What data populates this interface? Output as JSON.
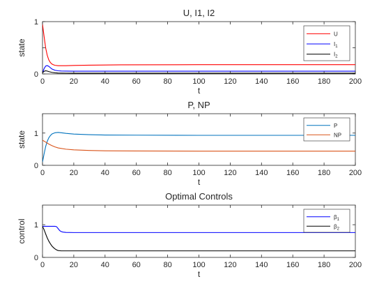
{
  "chart_data": [
    {
      "type": "line",
      "title": "U, I1, I2",
      "xlabel": "t",
      "ylabel": "state",
      "xlim": [
        0,
        200
      ],
      "ylim": [
        0,
        1
      ],
      "xticks": [
        "0",
        "20",
        "40",
        "60",
        "80",
        "100",
        "120",
        "140",
        "160",
        "180",
        "200"
      ],
      "yticks": [
        "0",
        "0.5",
        "1"
      ],
      "legend_position": "top-right",
      "series": [
        {
          "name": "U",
          "legend_base": "U",
          "legend_sub": "",
          "color": "#ff0000",
          "x": [
            0,
            1,
            2,
            3,
            4,
            5,
            6,
            7,
            8,
            10,
            12,
            15,
            20,
            30,
            50,
            100,
            150,
            200
          ],
          "y": [
            0.95,
            0.72,
            0.5,
            0.36,
            0.27,
            0.22,
            0.19,
            0.175,
            0.165,
            0.158,
            0.157,
            0.158,
            0.162,
            0.168,
            0.174,
            0.177,
            0.178,
            0.178
          ]
        },
        {
          "name": "I1",
          "legend_base": "I",
          "legend_sub": "1",
          "color": "#0000ff",
          "x": [
            0,
            1,
            2,
            3,
            4,
            5,
            6,
            8,
            10,
            12,
            15,
            20,
            30,
            50,
            100,
            200
          ],
          "y": [
            0.02,
            0.1,
            0.15,
            0.16,
            0.145,
            0.12,
            0.095,
            0.07,
            0.06,
            0.056,
            0.054,
            0.053,
            0.053,
            0.053,
            0.053,
            0.053
          ]
        },
        {
          "name": "I2",
          "legend_base": "I",
          "legend_sub": "2",
          "color": "#000000",
          "x": [
            0,
            1,
            2,
            3,
            4,
            6,
            8,
            10,
            15,
            20,
            50,
            100,
            200
          ],
          "y": [
            0.02,
            0.05,
            0.06,
            0.055,
            0.045,
            0.03,
            0.022,
            0.018,
            0.015,
            0.014,
            0.014,
            0.014,
            0.014
          ]
        }
      ]
    },
    {
      "type": "line",
      "title": "P, NP",
      "xlabel": "t",
      "ylabel": "state",
      "xlim": [
        0,
        200
      ],
      "ylim": [
        0,
        1.6
      ],
      "xticks": [
        "0",
        "20",
        "40",
        "60",
        "80",
        "100",
        "120",
        "140",
        "160",
        "180",
        "200"
      ],
      "yticks": [
        "0",
        "1"
      ],
      "legend_position": "top-right",
      "series": [
        {
          "name": "P",
          "legend_base": "P",
          "legend_sub": "",
          "color": "#0072bd",
          "x": [
            0,
            1,
            2,
            3,
            4,
            5,
            6,
            8,
            10,
            12,
            15,
            20,
            30,
            40,
            60,
            100,
            150,
            200
          ],
          "y": [
            0.1,
            0.35,
            0.58,
            0.74,
            0.85,
            0.92,
            0.97,
            1.01,
            1.02,
            1.01,
            0.99,
            0.97,
            0.95,
            0.94,
            0.935,
            0.93,
            0.93,
            0.93
          ],
          "display": true
        },
        {
          "name": "NP",
          "legend_base": "NP",
          "legend_sub": "",
          "color": "#d95319",
          "x": [
            0,
            2,
            4,
            6,
            8,
            10,
            15,
            20,
            30,
            40,
            60,
            100,
            150,
            200
          ],
          "y": [
            0.78,
            0.72,
            0.66,
            0.61,
            0.57,
            0.54,
            0.5,
            0.48,
            0.46,
            0.45,
            0.445,
            0.44,
            0.44,
            0.44
          ]
        }
      ]
    },
    {
      "type": "line",
      "title": "Optimal Controls",
      "xlabel": "t",
      "ylabel": "control",
      "xlim": [
        0,
        200
      ],
      "ylim": [
        0,
        1.6
      ],
      "xticks": [
        "0",
        "20",
        "40",
        "60",
        "80",
        "100",
        "120",
        "140",
        "160",
        "180",
        "200"
      ],
      "yticks": [
        "0",
        "1"
      ],
      "legend_position": "top-right",
      "series": [
        {
          "name": "β1",
          "legend_base": "β",
          "legend_sub": "1",
          "color": "#0000ff",
          "x": [
            0,
            8,
            9,
            10,
            11,
            12,
            13,
            14,
            15,
            20,
            50,
            100,
            200
          ],
          "y": [
            0.95,
            0.95,
            0.94,
            0.88,
            0.82,
            0.79,
            0.775,
            0.77,
            0.765,
            0.76,
            0.76,
            0.76,
            0.76
          ]
        },
        {
          "name": "β2",
          "legend_base": "β",
          "legend_sub": "2",
          "color": "#000000",
          "x": [
            0,
            1,
            2,
            3,
            4,
            5,
            6,
            7,
            8,
            9,
            10,
            12,
            15,
            20,
            50,
            100,
            200
          ],
          "y": [
            0.95,
            0.85,
            0.72,
            0.6,
            0.5,
            0.42,
            0.35,
            0.3,
            0.26,
            0.23,
            0.21,
            0.2,
            0.2,
            0.2,
            0.2,
            0.2,
            0.2
          ]
        }
      ]
    }
  ]
}
